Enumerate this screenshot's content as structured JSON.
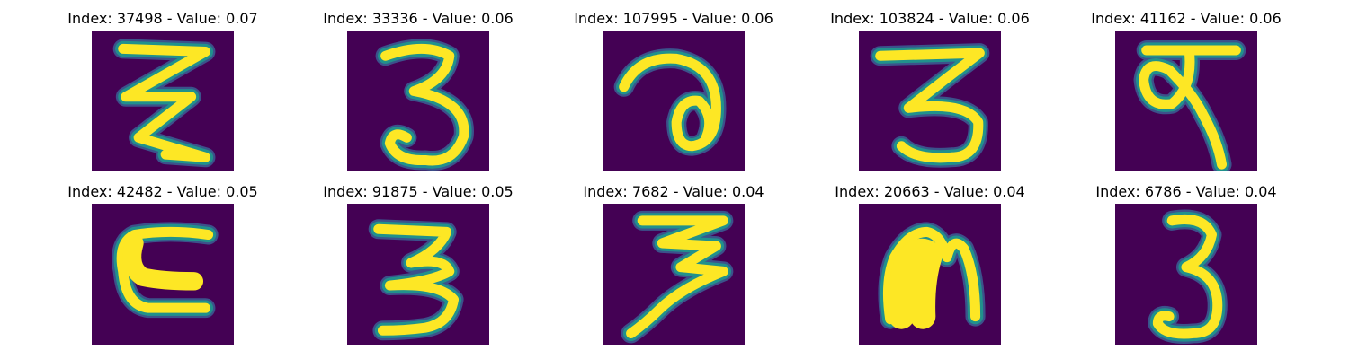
{
  "figure": {
    "colors": {
      "background": "#440154",
      "stroke_core": "#fde725",
      "stroke_edge": "#21918c",
      "stroke_halo": "#3b528b"
    },
    "panels": [
      {
        "title": "Index: 37498 - Value: 0.07",
        "index": 37498,
        "value": 0.07,
        "glyph": "zigzag-3-like-handwritten-character"
      },
      {
        "title": "Index: 33336 - Value: 0.06",
        "index": 33336,
        "value": 0.06,
        "glyph": "handwritten-digit-3"
      },
      {
        "title": "Index: 107995 - Value: 0.06",
        "index": 107995,
        "value": 0.06,
        "glyph": "looped-handwritten-character"
      },
      {
        "title": "Index: 103824 - Value: 0.06",
        "index": 103824,
        "value": 0.06,
        "glyph": "handwritten-digit-3"
      },
      {
        "title": "Index: 41162 - Value: 0.06",
        "index": 41162,
        "value": 0.06,
        "glyph": "devanagari-like-handwritten-character"
      },
      {
        "title": "Index: 42482 - Value: 0.05",
        "index": 42482,
        "value": 0.05,
        "glyph": "c-shaped-handwritten-character"
      },
      {
        "title": "Index: 91875 - Value: 0.05",
        "index": 91875,
        "value": 0.05,
        "glyph": "handwritten-digit-3"
      },
      {
        "title": "Index: 7682 - Value: 0.04",
        "index": 7682,
        "value": 0.04,
        "glyph": "zigzag-3-like-handwritten-character"
      },
      {
        "title": "Index: 20663 - Value: 0.04",
        "index": 20663,
        "value": 0.04,
        "glyph": "arch-shaped-handwritten-character"
      },
      {
        "title": "Index: 6786 - Value: 0.04",
        "index": 6786,
        "value": 0.04,
        "glyph": "handwritten-digit-3"
      }
    ]
  }
}
